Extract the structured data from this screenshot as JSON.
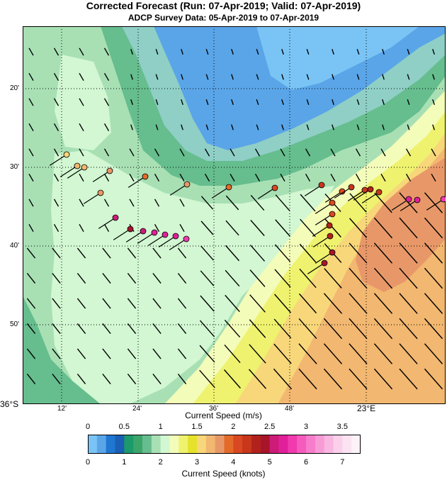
{
  "header": {
    "title": "Corrected Forecast (Run: 07-Apr-2019; Valid: 07-Apr-2019)",
    "subtitle": "ADCP Survey Data: 05-Apr-2019 to 07-Apr-2019"
  },
  "map": {
    "lat_labels": [
      "20'",
      "30'",
      "40'",
      "50'",
      "36°S"
    ],
    "lon_labels": [
      "12'",
      "24'",
      "36'",
      "48'",
      "23°E"
    ],
    "colors": {
      "speed_0_0.25": "#7ac4f5",
      "speed_0.25_0.5": "#5aa5e8",
      "speed_0.5_0.75": "#8fcfc6",
      "speed_0.75_1": "#66bd8e",
      "speed_1_1.25": "#a8e0b4",
      "speed_1.25_1.5": "#d2f7d2",
      "speed_1.5_1.75": "#f4fcba",
      "speed_1.75_2": "#eef26e",
      "speed_2_2.25": "#f7d77a",
      "speed_2.25_2.5": "#f2b770",
      "speed_2.5_2.75": "#e89868",
      "arrow": "#000000",
      "grid": "#000000"
    },
    "observations_speed_ms": [
      1.58,
      1.66,
      1.66,
      1.78,
      1.78,
      1.94,
      1.82,
      1.92,
      2.05,
      2.2,
      2.1,
      2.16,
      2.22,
      2.34,
      2.2,
      2.12,
      2.06,
      2.3,
      2.36,
      2.44,
      2.48,
      2.5,
      2.48,
      2.62,
      2.66,
      2.7,
      2.64,
      2.78,
      2.74,
      2.72,
      2.76
    ]
  },
  "colorbar": {
    "top_ticks": [
      "0",
      "0.5",
      "1",
      "1.5",
      "2",
      "2.5",
      "3",
      "3.5"
    ],
    "bottom_ticks": [
      "0",
      "1",
      "2",
      "3",
      "4",
      "5",
      "6",
      "7"
    ],
    "top_label": "Current Speed (m/s)",
    "bottom_label": "Current Speed (knots)",
    "colors": [
      "#7ac4f5",
      "#5aa5e8",
      "#1f77d2",
      "#1a5fb4",
      "#1c9a6b",
      "#3ba56a",
      "#66bd8e",
      "#a8e0b4",
      "#d2f7d2",
      "#f4fcba",
      "#eef26e",
      "#e6e22c",
      "#f7d77a",
      "#f2b770",
      "#e89868",
      "#e46a2a",
      "#d94820",
      "#c8361c",
      "#b2221c",
      "#a8152a",
      "#cc1c78",
      "#e11f9a",
      "#f03aad",
      "#f55bbd",
      "#f77ccb",
      "#f89ad6",
      "#f9b6e1",
      "#fad0ea",
      "#fbe3f2",
      "#fdf2f8"
    ]
  }
}
